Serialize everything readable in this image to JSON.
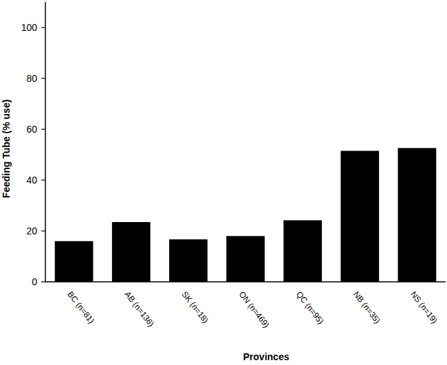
{
  "chart_data": {
    "type": "bar",
    "x_label": "Provinces",
    "y_label": "Feeding Tube (% use)",
    "categories": [
      "BC (n=81)",
      "AB (n=136)",
      "SK (n=18)",
      "ON (n=469)",
      "QC (n=95)",
      "NB (n=35)",
      "NS (n=19)"
    ],
    "values": [
      16,
      23.5,
      16.7,
      18,
      24.2,
      51.5,
      52.6
    ],
    "color": "#000000",
    "ylim": [
      0,
      110
    ],
    "yticks": [
      0,
      20,
      40,
      60,
      80,
      100
    ],
    "grid": false
  }
}
